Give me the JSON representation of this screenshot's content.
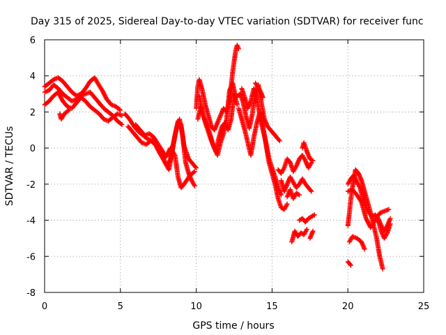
{
  "chart_data": {
    "type": "scatter",
    "title": "Day 315 of 2025, Sidereal Day-to-day VTEC variation (SDTVAR) for receiver func",
    "xlabel": "GPS time / hours",
    "ylabel": "SDTVAR / TECUs",
    "xlim": [
      0,
      25
    ],
    "ylim": [
      -8,
      6
    ],
    "xticks": [
      0,
      5,
      10,
      15,
      20,
      25
    ],
    "yticks": [
      -8,
      -6,
      -4,
      -2,
      0,
      2,
      4,
      6
    ],
    "grid": true,
    "marker": "+",
    "colors": {
      "series": "#ff0000",
      "grid": "#a0a0a0",
      "axis": "#000000"
    },
    "series": [
      {
        "name": "SDTVAR",
        "points": [
          [
            0.0,
            3.4
          ],
          [
            0.3,
            3.6
          ],
          [
            0.6,
            3.8
          ],
          [
            0.9,
            3.9
          ],
          [
            1.2,
            3.7
          ],
          [
            1.5,
            3.4
          ],
          [
            1.8,
            3.1
          ],
          [
            2.1,
            2.9
          ],
          [
            2.4,
            3.0
          ],
          [
            2.7,
            3.3
          ],
          [
            3.0,
            3.7
          ],
          [
            3.3,
            3.9
          ],
          [
            3.5,
            3.6
          ],
          [
            3.8,
            3.2
          ],
          [
            4.1,
            2.7
          ],
          [
            4.4,
            2.4
          ],
          [
            4.7,
            2.3
          ],
          [
            5.0,
            2.1
          ],
          [
            0.0,
            3.1
          ],
          [
            0.3,
            3.2
          ],
          [
            0.6,
            3.5
          ],
          [
            0.9,
            3.3
          ],
          [
            1.2,
            3.0
          ],
          [
            1.5,
            2.8
          ],
          [
            1.8,
            2.6
          ],
          [
            2.1,
            2.7
          ],
          [
            2.4,
            2.9
          ],
          [
            2.7,
            3.0
          ],
          [
            3.0,
            3.1
          ],
          [
            3.3,
            2.8
          ],
          [
            3.6,
            2.5
          ],
          [
            3.9,
            2.2
          ],
          [
            4.2,
            2.0
          ],
          [
            4.5,
            1.8
          ],
          [
            4.8,
            1.5
          ],
          [
            5.1,
            1.3
          ],
          [
            0.0,
            2.4
          ],
          [
            0.3,
            2.6
          ],
          [
            0.6,
            2.9
          ],
          [
            0.9,
            3.1
          ],
          [
            1.2,
            2.6
          ],
          [
            1.5,
            2.3
          ],
          [
            1.8,
            2.2
          ],
          [
            2.1,
            2.5
          ],
          [
            2.4,
            2.8
          ],
          [
            2.7,
            2.6
          ],
          [
            3.0,
            2.3
          ],
          [
            3.3,
            2.1
          ],
          [
            3.6,
            1.9
          ],
          [
            3.9,
            1.6
          ],
          [
            4.2,
            1.5
          ],
          [
            4.5,
            1.7
          ],
          [
            4.8,
            1.9
          ],
          [
            5.1,
            1.8
          ],
          [
            1.0,
            1.9
          ],
          [
            1.1,
            1.6
          ],
          [
            1.3,
            1.9
          ],
          [
            1.6,
            2.1
          ],
          [
            5.3,
            1.9
          ],
          [
            5.6,
            1.6
          ],
          [
            5.9,
            1.2
          ],
          [
            6.2,
            0.9
          ],
          [
            6.5,
            0.7
          ],
          [
            6.8,
            0.5
          ],
          [
            7.1,
            0.4
          ],
          [
            7.4,
            0.1
          ],
          [
            7.7,
            -0.4
          ],
          [
            8.0,
            -0.9
          ],
          [
            8.2,
            -1.2
          ],
          [
            8.4,
            -0.3
          ],
          [
            8.6,
            0.7
          ],
          [
            8.8,
            1.5
          ],
          [
            9.0,
            1.3
          ],
          [
            9.2,
            0.1
          ],
          [
            9.5,
            -0.6
          ],
          [
            9.8,
            -0.9
          ],
          [
            10.0,
            -1.1
          ],
          [
            5.5,
            1.2
          ],
          [
            5.8,
            0.9
          ],
          [
            6.1,
            0.6
          ],
          [
            6.4,
            0.3
          ],
          [
            6.7,
            0.2
          ],
          [
            7.0,
            0.4
          ],
          [
            7.3,
            0.2
          ],
          [
            7.6,
            -0.3
          ],
          [
            7.9,
            -0.7
          ],
          [
            8.1,
            -1.0
          ],
          [
            8.3,
            -0.6
          ],
          [
            8.5,
            0.3
          ],
          [
            8.7,
            1.1
          ],
          [
            8.9,
            1.6
          ],
          [
            9.1,
            0.7
          ],
          [
            9.3,
            -0.8
          ],
          [
            9.5,
            -1.4
          ],
          [
            9.7,
            -1.8
          ],
          [
            9.9,
            -2.1
          ],
          [
            6.0,
            1.3
          ],
          [
            6.3,
            1.0
          ],
          [
            6.6,
            0.7
          ],
          [
            6.9,
            0.8
          ],
          [
            7.2,
            0.6
          ],
          [
            7.5,
            0.2
          ],
          [
            7.8,
            -0.2
          ],
          [
            8.0,
            -0.5
          ],
          [
            8.3,
            0.0
          ],
          [
            8.6,
            -0.4
          ],
          [
            8.8,
            -1.6
          ],
          [
            9.0,
            -2.2
          ],
          [
            9.2,
            -2.0
          ],
          [
            9.6,
            -1.5
          ],
          [
            9.9,
            -1.3
          ],
          [
            10.0,
            2.2
          ],
          [
            10.1,
            3.4
          ],
          [
            10.2,
            3.8
          ],
          [
            10.4,
            3.2
          ],
          [
            10.6,
            2.4
          ],
          [
            10.8,
            1.8
          ],
          [
            11.0,
            1.2
          ],
          [
            11.2,
            1.0
          ],
          [
            11.4,
            1.4
          ],
          [
            11.6,
            1.8
          ],
          [
            11.8,
            2.2
          ],
          [
            12.0,
            2.0
          ],
          [
            12.2,
            2.6
          ],
          [
            12.4,
            4.2
          ],
          [
            12.6,
            5.4
          ],
          [
            12.7,
            5.7
          ],
          [
            12.8,
            5.5
          ],
          [
            10.1,
            1.6
          ],
          [
            10.3,
            2.3
          ],
          [
            10.5,
            1.7
          ],
          [
            10.7,
            1.3
          ],
          [
            10.9,
            0.8
          ],
          [
            11.1,
            0.2
          ],
          [
            11.3,
            -0.2
          ],
          [
            11.5,
            0.6
          ],
          [
            11.7,
            1.2
          ],
          [
            11.9,
            1.4
          ],
          [
            12.1,
            1.0
          ],
          [
            12.3,
            1.6
          ],
          [
            12.5,
            3.0
          ],
          [
            12.7,
            2.4
          ],
          [
            10.2,
            2.9
          ],
          [
            10.4,
            2.0
          ],
          [
            10.6,
            1.4
          ],
          [
            10.8,
            0.9
          ],
          [
            11.0,
            0.4
          ],
          [
            11.2,
            0.0
          ],
          [
            11.4,
            -0.4
          ],
          [
            11.6,
            0.3
          ],
          [
            11.8,
            0.8
          ],
          [
            12.0,
            1.6
          ],
          [
            12.2,
            3.2
          ],
          [
            12.4,
            3.6
          ],
          [
            12.6,
            2.8
          ],
          [
            12.9,
            3.0
          ],
          [
            13.1,
            2.5
          ],
          [
            13.3,
            1.7
          ],
          [
            13.5,
            1.1
          ],
          [
            13.7,
            1.9
          ],
          [
            13.9,
            3.1
          ],
          [
            14.1,
            3.5
          ],
          [
            14.3,
            2.5
          ],
          [
            14.5,
            1.6
          ],
          [
            14.7,
            1.2
          ],
          [
            14.9,
            1.0
          ],
          [
            15.1,
            0.8
          ],
          [
            15.3,
            0.6
          ],
          [
            15.5,
            0.4
          ],
          [
            12.8,
            2.2
          ],
          [
            13.0,
            1.6
          ],
          [
            13.2,
            1.0
          ],
          [
            13.4,
            0.3
          ],
          [
            13.6,
            -0.4
          ],
          [
            13.8,
            0.6
          ],
          [
            14.0,
            1.4
          ],
          [
            14.2,
            2.0
          ],
          [
            14.4,
            1.2
          ],
          [
            14.6,
            0.2
          ],
          [
            14.8,
            -0.8
          ],
          [
            15.0,
            -1.4
          ],
          [
            15.2,
            -2.0
          ],
          [
            15.4,
            -2.8
          ],
          [
            15.6,
            -3.3
          ],
          [
            15.8,
            -3.4
          ],
          [
            16.0,
            -3.1
          ],
          [
            13.0,
            3.3
          ],
          [
            13.2,
            2.8
          ],
          [
            13.4,
            2.2
          ],
          [
            13.6,
            2.6
          ],
          [
            13.8,
            3.3
          ],
          [
            14.0,
            2.7
          ],
          [
            14.2,
            1.8
          ],
          [
            14.4,
            1.0
          ],
          [
            14.6,
            0.3
          ],
          [
            14.8,
            -0.6
          ],
          [
            15.0,
            -1.1
          ],
          [
            15.2,
            -1.6
          ],
          [
            15.4,
            -2.2
          ],
          [
            15.6,
            -2.6
          ],
          [
            13.9,
            3.6
          ],
          [
            14.2,
            3.2
          ],
          [
            14.4,
            2.8
          ],
          [
            15.6,
            -1.8
          ],
          [
            15.8,
            -2.4
          ],
          [
            16.0,
            -2.0
          ],
          [
            16.2,
            -1.6
          ],
          [
            16.4,
            -1.9
          ],
          [
            16.6,
            -2.2
          ],
          [
            16.8,
            -2.0
          ],
          [
            17.0,
            -1.7
          ],
          [
            17.2,
            -2.0
          ],
          [
            17.4,
            -2.2
          ],
          [
            17.6,
            -2.4
          ],
          [
            15.4,
            -1.2
          ],
          [
            15.6,
            -1.4
          ],
          [
            15.8,
            -1.1
          ],
          [
            16.0,
            -0.6
          ],
          [
            16.2,
            -0.8
          ],
          [
            16.4,
            -1.3
          ],
          [
            16.6,
            -1.0
          ],
          [
            16.8,
            -0.6
          ],
          [
            17.0,
            -0.4
          ],
          [
            17.2,
            -0.7
          ],
          [
            17.4,
            -1.1
          ],
          [
            17.6,
            -0.8
          ],
          [
            16.0,
            -2.7
          ],
          [
            16.2,
            -2.3
          ],
          [
            16.4,
            -2.8
          ],
          [
            16.6,
            -2.5
          ],
          [
            16.8,
            -2.6
          ],
          [
            17.0,
            0.0
          ],
          [
            17.1,
            0.3
          ],
          [
            17.3,
            -0.2
          ],
          [
            17.5,
            -0.6
          ],
          [
            17.7,
            -0.7
          ],
          [
            16.3,
            -5.2
          ],
          [
            16.5,
            -4.6
          ],
          [
            16.7,
            -4.9
          ],
          [
            16.9,
            -4.7
          ],
          [
            17.1,
            -4.8
          ],
          [
            17.3,
            -4.5
          ],
          [
            16.8,
            -4.0
          ],
          [
            17.0,
            -3.9
          ],
          [
            17.2,
            -4.1
          ],
          [
            17.4,
            -3.9
          ],
          [
            17.6,
            -3.8
          ],
          [
            17.8,
            -3.7
          ],
          [
            17.5,
            -5.0
          ],
          [
            17.7,
            -4.6
          ],
          [
            20.0,
            -6.3
          ],
          [
            20.2,
            -6.5
          ],
          [
            20.0,
            -4.3
          ],
          [
            20.1,
            -3.6
          ],
          [
            20.2,
            -2.8
          ],
          [
            20.3,
            -2.2
          ],
          [
            20.5,
            -1.2
          ],
          [
            20.7,
            -1.4
          ],
          [
            20.9,
            -1.8
          ],
          [
            21.1,
            -2.4
          ],
          [
            21.3,
            -3.0
          ],
          [
            21.5,
            -3.6
          ],
          [
            21.7,
            -4.3
          ],
          [
            21.9,
            -5.0
          ],
          [
            22.1,
            -6.0
          ],
          [
            22.3,
            -6.7
          ],
          [
            20.0,
            -2.0
          ],
          [
            20.2,
            -1.7
          ],
          [
            20.4,
            -1.5
          ],
          [
            20.6,
            -1.9
          ],
          [
            20.8,
            -2.2
          ],
          [
            21.0,
            -2.8
          ],
          [
            21.2,
            -3.3
          ],
          [
            21.4,
            -3.6
          ],
          [
            21.6,
            -3.8
          ],
          [
            21.8,
            -3.7
          ],
          [
            22.0,
            -3.9
          ],
          [
            22.2,
            -4.3
          ],
          [
            22.4,
            -4.6
          ],
          [
            22.6,
            -4.3
          ],
          [
            22.8,
            -3.9
          ],
          [
            20.0,
            -2.4
          ],
          [
            20.3,
            -2.3
          ],
          [
            20.6,
            -2.6
          ],
          [
            20.9,
            -3.0
          ],
          [
            21.2,
            -3.9
          ],
          [
            21.5,
            -4.4
          ],
          [
            21.8,
            -4.0
          ],
          [
            22.1,
            -3.6
          ],
          [
            22.4,
            -3.5
          ],
          [
            22.7,
            -3.4
          ],
          [
            20.1,
            -5.2
          ],
          [
            20.3,
            -4.9
          ],
          [
            20.6,
            -5.0
          ],
          [
            20.9,
            -5.2
          ],
          [
            21.1,
            -5.6
          ],
          [
            22.0,
            -4.0
          ],
          [
            22.2,
            -4.6
          ],
          [
            22.4,
            -5.0
          ],
          [
            22.6,
            -4.7
          ],
          [
            22.8,
            -4.2
          ]
        ]
      }
    ]
  }
}
